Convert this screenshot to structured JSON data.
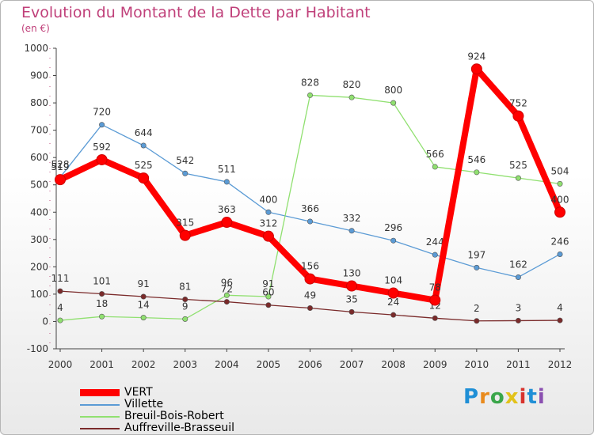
{
  "chart_data": {
    "type": "line",
    "title": "Evolution du Montant de la Dette par Habitant",
    "subtitle": "(en €)",
    "x": [
      "2000",
      "2001",
      "2002",
      "2003",
      "2004",
      "2005",
      "2006",
      "2007",
      "2008",
      "2009",
      "2010",
      "2011",
      "2012"
    ],
    "ylim": [
      -100,
      1000
    ],
    "yticks": [
      -100,
      0,
      100,
      200,
      300,
      400,
      500,
      600,
      700,
      800,
      900,
      1000
    ],
    "grid": false,
    "legend_position": "bottom-left",
    "series": [
      {
        "name": "VERT",
        "color": "#ff0000",
        "values": [
          519,
          592,
          525,
          315,
          363,
          312,
          156,
          130,
          104,
          78,
          924,
          752,
          400
        ]
      },
      {
        "name": "Villette",
        "color": "#5b9bd5",
        "values": [
          528,
          720,
          644,
          542,
          511,
          400,
          366,
          332,
          296,
          244,
          197,
          162,
          246
        ]
      },
      {
        "name": "Breuil-Bois-Robert",
        "color": "#90e070",
        "values": [
          4,
          18,
          14,
          9,
          96,
          91,
          828,
          820,
          800,
          566,
          546,
          525,
          504
        ]
      },
      {
        "name": "Auffreville-Brasseuil",
        "color": "#7a2a2a",
        "values": [
          111,
          101,
          91,
          81,
          72,
          60,
          49,
          35,
          24,
          12,
          2,
          3,
          4
        ]
      }
    ],
    "data_labels": {
      "VERT": [
        "519",
        "592",
        "525",
        "315",
        "363",
        "312",
        "156",
        "130",
        "104",
        "78",
        "924",
        "752",
        "400"
      ],
      "Villette": [
        "528",
        "720",
        "644",
        "542",
        "511",
        "400",
        "366",
        "332",
        "296",
        "244",
        "197",
        "162",
        "246"
      ],
      "Breuil-Bois-Robert": [
        "4",
        "18",
        "14",
        "9",
        "96",
        "91",
        "828",
        "820",
        "800",
        "566",
        "546",
        "525",
        "504"
      ],
      "Auffreville-Brasseuil": [
        "111",
        "101",
        "91",
        "81",
        "72",
        "60",
        "49",
        "35",
        "24",
        "12",
        "2",
        "3",
        "4"
      ]
    }
  },
  "legend": [
    {
      "label": "VERT",
      "color": "#ff0000"
    },
    {
      "label": "Villette",
      "color": "#5b9bd5"
    },
    {
      "label": "Breuil-Bois-Robert",
      "color": "#90e070"
    },
    {
      "label": "Auffreville-Brasseuil",
      "color": "#7a2a2a"
    }
  ],
  "brand": {
    "letters": [
      "P",
      "r",
      "o",
      "x",
      "i",
      "t",
      "i"
    ]
  }
}
